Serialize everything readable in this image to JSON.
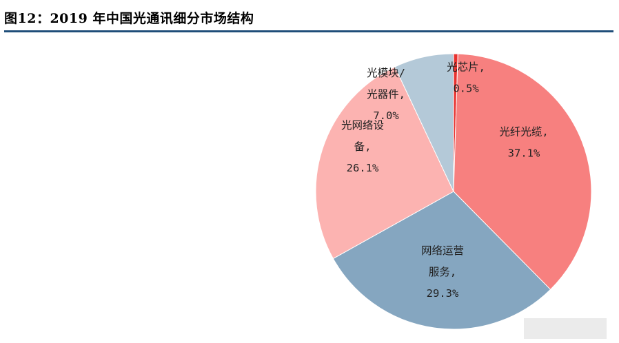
{
  "header": {
    "title": "图12：2019 年中国光通讯细分市场结构"
  },
  "colors": {
    "rule": "#1f4e79"
  },
  "chart_data": {
    "type": "pie",
    "title": "",
    "slices": [
      {
        "label_lines": [
          "光芯片,",
          "0.5%"
        ],
        "value": 0.5,
        "color": "#e8322f"
      },
      {
        "label_lines": [
          "光纤光缆,",
          "37.1%"
        ],
        "value": 37.1,
        "color": "#f7807f"
      },
      {
        "label_lines": [
          "网络运营",
          "服务,",
          "29.3%"
        ],
        "value": 29.3,
        "color": "#85a6c0"
      },
      {
        "label_lines": [
          "光网络设",
          "备,",
          "26.1%"
        ],
        "value": 26.1,
        "color": "#fcb3b1"
      },
      {
        "label_lines": [
          "光模块/",
          "光器件,",
          "7.0%"
        ],
        "value": 7.0,
        "color": "#b4c9d8"
      }
    ]
  }
}
